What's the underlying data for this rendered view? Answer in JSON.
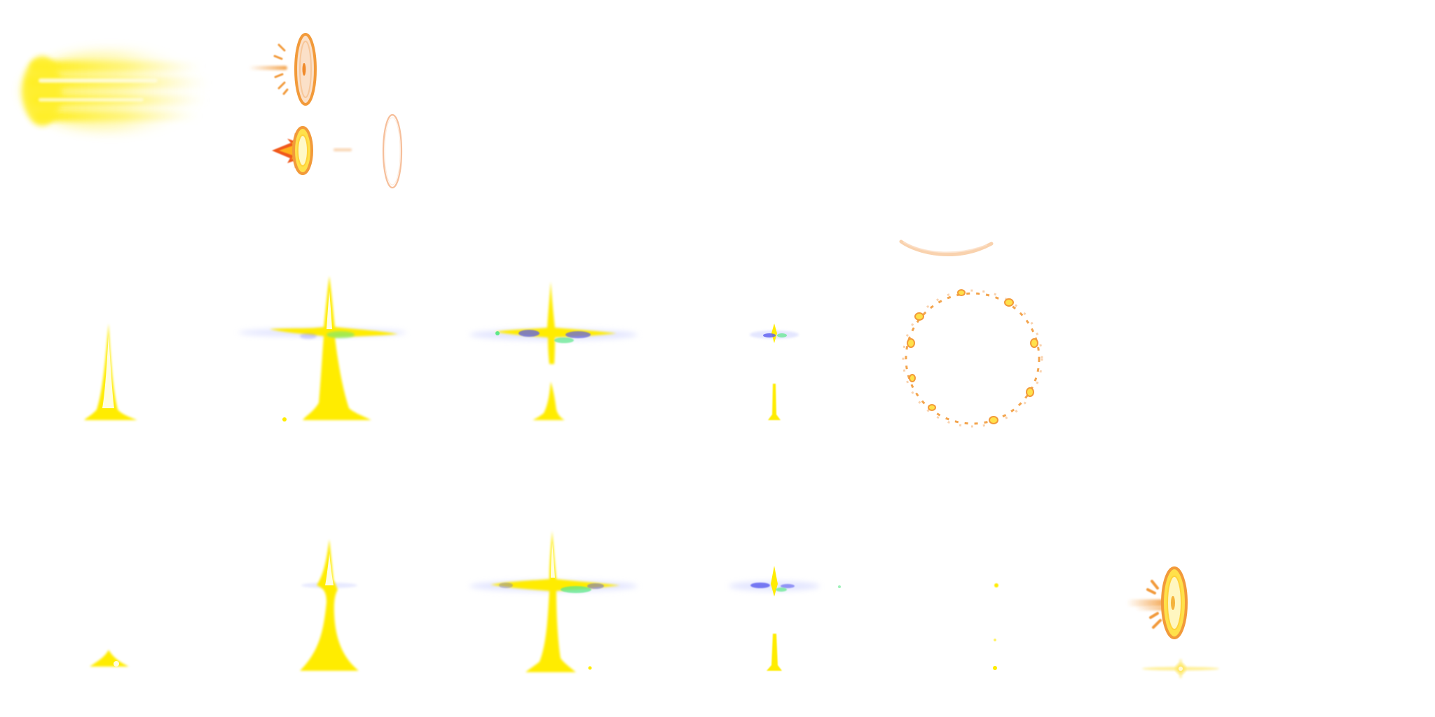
{
  "sprite_sheet": {
    "background": "#ffffff",
    "colors": {
      "bolt_yellow": "#ffec00",
      "bolt_core": "#fffde0",
      "bolt_glow": "#fff36a",
      "ring_orange": "#f29a3a",
      "ring_light": "#f7c79a",
      "flare_blue": "#5a5cf0",
      "flare_green": "#5de88a",
      "flare_haze": "#d8dcff",
      "flame_red": "#f0581a"
    },
    "sprites": [
      {
        "name": "comet-trail-sprite",
        "kind": "comet-trail"
      },
      {
        "name": "charged-ring-sprite",
        "kind": "charged-ring"
      },
      {
        "name": "fire-burst-ring-sprite",
        "kind": "fire-burst-ring"
      },
      {
        "name": "spark-dot-sprite",
        "kind": "spark-dot"
      },
      {
        "name": "faint-ring-sprite",
        "kind": "faint-ring"
      },
      {
        "name": "lightning-pillar-sprite-1",
        "kind": "pillar"
      },
      {
        "name": "lightning-cross-sprite-1",
        "kind": "cross"
      },
      {
        "name": "lightning-cross-sprite-2",
        "kind": "cross-split"
      },
      {
        "name": "lightning-fade-sprite-1",
        "kind": "fade"
      },
      {
        "name": "orange-arc-sprite",
        "kind": "arc"
      },
      {
        "name": "dotted-ring-sprite",
        "kind": "dotted-ring"
      },
      {
        "name": "lightning-stub-sprite",
        "kind": "stub"
      },
      {
        "name": "lightning-rise-sprite",
        "kind": "rise"
      },
      {
        "name": "lightning-cross-sprite-3",
        "kind": "cross"
      },
      {
        "name": "lightning-fade-sprite-2",
        "kind": "fade"
      },
      {
        "name": "lightning-trace-sprite",
        "kind": "trace"
      },
      {
        "name": "charged-ring-sprite-2",
        "kind": "charged-ring"
      },
      {
        "name": "small-starburst-sprite",
        "kind": "starburst"
      }
    ]
  }
}
